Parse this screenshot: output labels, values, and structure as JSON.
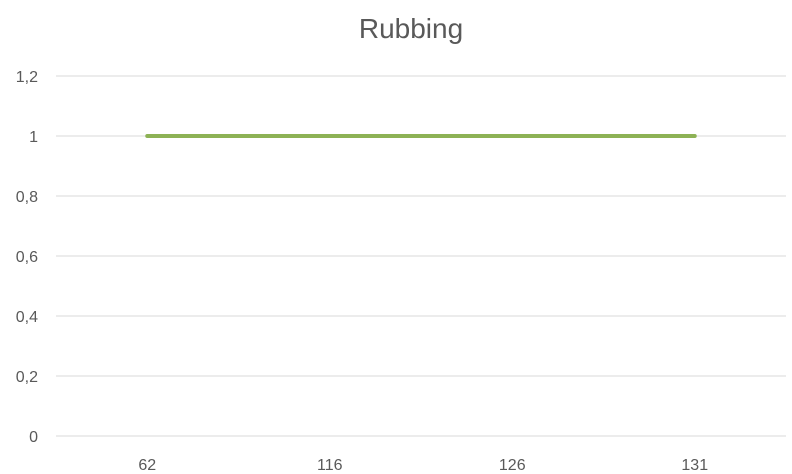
{
  "chart_data": {
    "type": "line",
    "title": "Rubbing",
    "xlabel": "",
    "ylabel": "",
    "categories": [
      "62",
      "116",
      "126",
      "131"
    ],
    "series": [
      {
        "values": [
          1,
          1,
          1,
          1
        ],
        "color": "#8db255"
      }
    ],
    "ylim": [
      0,
      1.2
    ],
    "yticks": [
      0,
      0.2,
      0.4,
      0.6,
      0.8,
      1,
      1.2
    ],
    "ytick_labels": [
      "0",
      "0,2",
      "0,4",
      "0,6",
      "0,8",
      "1",
      "1,2"
    ],
    "grid": true,
    "legend": "none"
  }
}
